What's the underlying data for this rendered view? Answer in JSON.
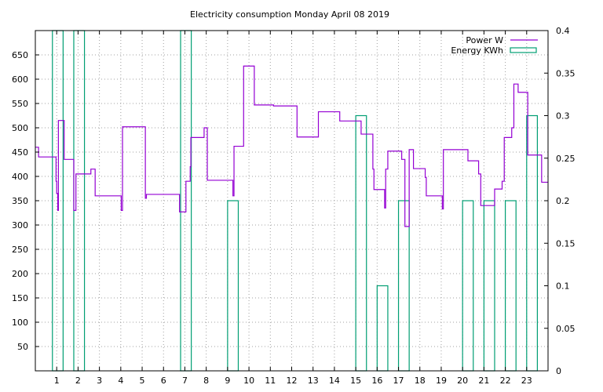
{
  "chart_data": {
    "type": "line",
    "title": "Electricity consumption Monday April 08 2019",
    "xlim": [
      0,
      24
    ],
    "ylim_left": [
      0,
      700
    ],
    "ylim_right": [
      0,
      0.4
    ],
    "x_ticks": [
      1,
      2,
      3,
      4,
      5,
      6,
      7,
      8,
      9,
      10,
      11,
      12,
      13,
      14,
      15,
      16,
      17,
      18,
      19,
      20,
      21,
      22,
      23
    ],
    "y_left_ticks": [
      50,
      100,
      150,
      200,
      250,
      300,
      350,
      400,
      450,
      500,
      550,
      600,
      650
    ],
    "y_right_ticks": [
      0,
      0.05,
      0.1,
      0.15,
      0.2,
      0.25,
      0.3,
      0.35,
      0.4
    ],
    "grid": true,
    "legend_position": "top-right",
    "series": [
      {
        "name": "Power W",
        "axis": "left",
        "style": "steps",
        "color": "#9400d3",
        "points": [
          [
            0.0,
            460
          ],
          [
            0.15,
            440
          ],
          [
            0.97,
            390
          ],
          [
            1.0,
            365
          ],
          [
            1.05,
            330
          ],
          [
            1.08,
            515
          ],
          [
            1.35,
            435
          ],
          [
            1.8,
            330
          ],
          [
            1.9,
            405
          ],
          [
            2.6,
            415
          ],
          [
            2.8,
            360
          ],
          [
            4.02,
            330
          ],
          [
            4.08,
            502
          ],
          [
            5.15,
            355
          ],
          [
            5.2,
            363
          ],
          [
            6.75,
            327
          ],
          [
            7.05,
            390
          ],
          [
            7.25,
            420
          ],
          [
            7.28,
            480
          ],
          [
            7.9,
            500
          ],
          [
            8.05,
            392
          ],
          [
            9.25,
            360
          ],
          [
            9.3,
            462
          ],
          [
            9.75,
            627
          ],
          [
            10.25,
            547
          ],
          [
            11.15,
            545
          ],
          [
            12.25,
            481
          ],
          [
            13.25,
            533
          ],
          [
            14.25,
            514
          ],
          [
            15.25,
            487
          ],
          [
            15.8,
            415
          ],
          [
            15.85,
            373
          ],
          [
            16.35,
            335
          ],
          [
            16.4,
            415
          ],
          [
            16.5,
            452
          ],
          [
            17.15,
            435
          ],
          [
            17.3,
            297
          ],
          [
            17.5,
            455
          ],
          [
            17.7,
            416
          ],
          [
            18.25,
            398
          ],
          [
            18.3,
            360
          ],
          [
            19.05,
            333
          ],
          [
            19.1,
            455
          ],
          [
            20.25,
            432
          ],
          [
            20.75,
            405
          ],
          [
            20.85,
            340
          ],
          [
            21.5,
            374
          ],
          [
            21.85,
            390
          ],
          [
            21.95,
            480
          ],
          [
            22.3,
            500
          ],
          [
            22.4,
            590
          ],
          [
            22.6,
            573
          ],
          [
            23.05,
            444
          ],
          [
            23.7,
            388
          ],
          [
            24.0,
            388
          ]
        ]
      },
      {
        "name": "Energy KWh",
        "axis": "right",
        "style": "boxes",
        "color": "#009e73",
        "bars": [
          [
            0.8,
            0.4
          ],
          [
            1.8,
            0.4
          ],
          [
            6.8,
            0.4
          ],
          [
            9.0,
            0.2
          ],
          [
            15.0,
            0.3
          ],
          [
            16.0,
            0.1
          ],
          [
            17.0,
            0.2
          ],
          [
            20.0,
            0.2
          ],
          [
            21.0,
            0.2
          ],
          [
            22.0,
            0.2
          ],
          [
            23.0,
            0.3
          ]
        ],
        "box_width": 0.5
      }
    ]
  }
}
